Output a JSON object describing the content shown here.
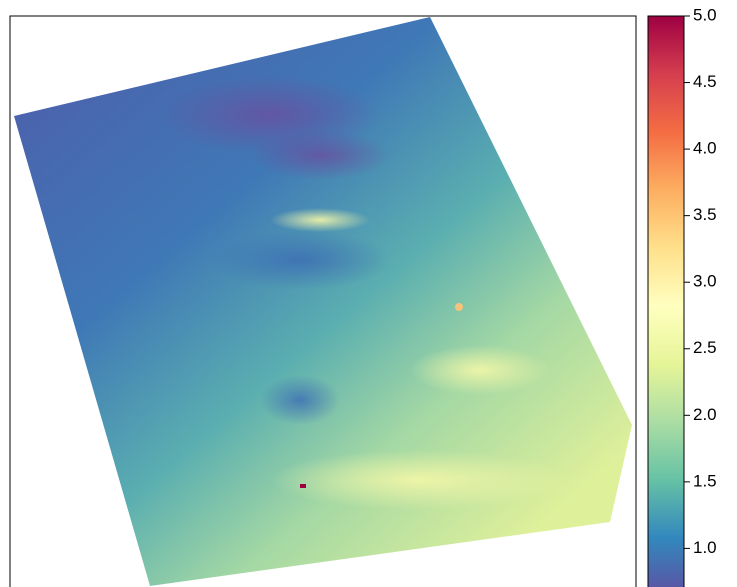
{
  "chart_data": {
    "type": "raster",
    "colorbar": {
      "clim": [
        0.71,
        5.0
      ],
      "colors": [
        "#5E4FA2",
        "#3288BD",
        "#66C2A5",
        "#ABDDA4",
        "#E6F598",
        "#FFFFBF",
        "#FEE08B",
        "#FDAE61",
        "#F46D43",
        "#D53E4F",
        "#9E0142"
      ],
      "ticks": [
        {
          "value": 1,
          "label": "1.0"
        },
        {
          "value": 1.5,
          "label": "1.5"
        },
        {
          "value": 2,
          "label": "2.0"
        },
        {
          "value": 2.5,
          "label": "2.5"
        },
        {
          "value": 3,
          "label": "3.0"
        },
        {
          "value": 3.5,
          "label": "3.5"
        },
        {
          "value": 4,
          "label": "4.0"
        },
        {
          "value": 4.5,
          "label": "4.5"
        },
        {
          "value": 5,
          "label": "5.0"
        }
      ]
    }
  }
}
